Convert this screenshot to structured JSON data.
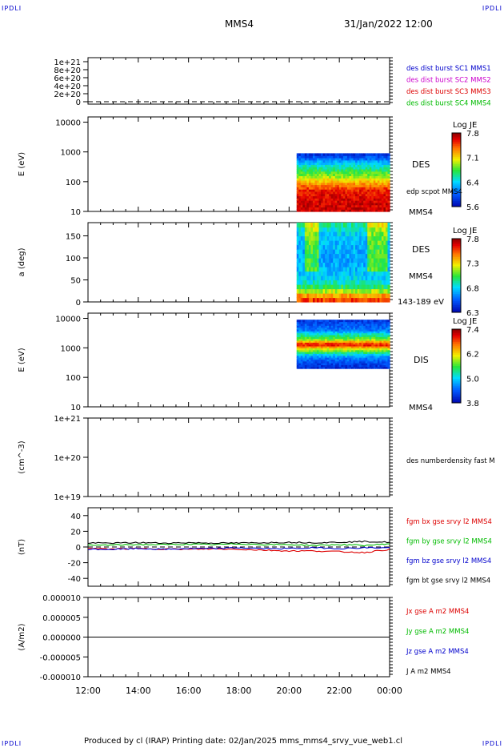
{
  "corner_tl": "IPDLI",
  "corner_tr": "IPDLI",
  "corner_bl": "IPDLI",
  "corner_br": "IPDLI",
  "title": "MMS4",
  "date": "31/Jan/2022 12:00",
  "footer": "Produced by cl (IRAP)   Printing date: 02/Jan/2025   mms_mms4_srvy_vue_web1.cl",
  "colors": {
    "mms1": "#0000cc",
    "mms2": "#cc00cc",
    "mms3": "#dd0000",
    "mms4": "#00bb00",
    "bx": "#dd0000",
    "by": "#00bb00",
    "bz": "#0000cc",
    "bt": "#000000",
    "jx": "#dd0000",
    "jy": "#00bb00",
    "jz": "#0000cc",
    "j": "#000000"
  },
  "chart_data": [
    {
      "type": "line",
      "id": "burst",
      "yticks": [
        "1e+21",
        "8e+20",
        "6e+20",
        "4e+20",
        "2e+20",
        "0"
      ],
      "ylim": [
        0,
        1.1e+21
      ],
      "series": [
        {
          "name": "des dist burst SC1 MMS1",
          "color": "#0000cc"
        },
        {
          "name": "des dist burst SC2 MMS2",
          "color": "#cc00cc"
        },
        {
          "name": "des dist burst SC3 MMS3",
          "color": "#dd0000"
        },
        {
          "name": "des dist burst SC4 MMS4",
          "color": "#00bb00"
        }
      ],
      "zero_line": true
    },
    {
      "type": "heatmap",
      "id": "des_energy",
      "ylabel": "E (eV)",
      "scale": "log",
      "yticks": [
        "10000",
        "1000",
        "100",
        "10"
      ],
      "ylim": [
        10,
        15000
      ],
      "label": "DES",
      "sublabel": "edp scpot MMS4",
      "bottom_label": "MMS4",
      "cbar_title": "Log JE",
      "cbar_ticks": [
        "7.8",
        "7.1",
        "6.4",
        "5.6"
      ],
      "coverage": {
        "start_h": 20.3,
        "end_h": 24.0,
        "emin": 10,
        "emax": 900
      },
      "profile": [
        {
          "e": 10,
          "level": 0.95
        },
        {
          "e": 50,
          "level": 0.9
        },
        {
          "e": 80,
          "level": 0.78
        },
        {
          "e": 150,
          "level": 0.58
        },
        {
          "e": 300,
          "level": 0.42
        },
        {
          "e": 600,
          "level": 0.2
        },
        {
          "e": 900,
          "level": 0.08
        }
      ]
    },
    {
      "type": "heatmap",
      "id": "des_pitch",
      "ylabel": "a (deg)",
      "yticks": [
        "150",
        "100",
        "50",
        "0"
      ],
      "ylim": [
        0,
        180
      ],
      "label": "DES",
      "sublabel": "MMS4",
      "bottom_label": "143-189 eV",
      "cbar_title": "Log JE",
      "cbar_ticks": [
        "7.8",
        "7.3",
        "6.8",
        "6.3"
      ],
      "coverage": {
        "start_h": 20.3,
        "end_h": 24.0
      },
      "profile": [
        {
          "a": 0,
          "level": 0.92
        },
        {
          "a": 15,
          "level": 0.75
        },
        {
          "a": 30,
          "level": 0.52
        },
        {
          "a": 50,
          "level": 0.35
        },
        {
          "a": 90,
          "level": 0.28
        },
        {
          "a": 150,
          "level": 0.32
        },
        {
          "a": 180,
          "level": 0.45
        }
      ],
      "hot_intervals": [
        {
          "start_h": 20.6,
          "end_h": 21.2
        },
        {
          "start_h": 23.1,
          "end_h": 23.9
        }
      ]
    },
    {
      "type": "heatmap",
      "id": "dis_energy",
      "ylabel": "E (eV)",
      "scale": "log",
      "yticks": [
        "10000",
        "1000",
        "100",
        "10"
      ],
      "ylim": [
        10,
        15000
      ],
      "label": "DIS",
      "bottom_label": "MMS4",
      "cbar_title": "Log JE",
      "cbar_ticks": [
        "7.4",
        "6.2",
        "5.0",
        "3.8"
      ],
      "coverage": {
        "start_h": 20.3,
        "end_h": 24.0,
        "emin": 200,
        "emax": 9000
      },
      "profile": [
        {
          "e": 200,
          "level": 0.08
        },
        {
          "e": 500,
          "level": 0.25
        },
        {
          "e": 800,
          "level": 0.55
        },
        {
          "e": 1300,
          "level": 0.92
        },
        {
          "e": 2000,
          "level": 0.55
        },
        {
          "e": 4000,
          "level": 0.22
        },
        {
          "e": 9000,
          "level": 0.1
        }
      ]
    },
    {
      "type": "line",
      "id": "density",
      "ylabel": "(cm^-3)",
      "scale": "log",
      "yticks": [
        "1e+21",
        "1e+20",
        "1e+19"
      ],
      "ylim": [
        1e+19,
        1e+21
      ],
      "series": [
        {
          "name": "des numberdensity fast M",
          "color": "#000000"
        }
      ]
    },
    {
      "type": "line",
      "id": "bfield",
      "ylabel": "(nT)",
      "yticks": [
        "40",
        "20",
        "0",
        "-20",
        "-40"
      ],
      "ylim": [
        -50,
        50
      ],
      "series": [
        {
          "name": "fgm bx gse srvy l2 MMS4",
          "color": "#dd0000",
          "x": [
            12,
            13,
            14,
            15,
            16,
            17,
            18,
            19,
            20,
            21,
            22,
            23,
            24
          ],
          "values": [
            -2,
            -2.5,
            -2,
            -2.5,
            -3,
            -2.5,
            -3,
            -4,
            -5,
            -5,
            -6,
            -7,
            -3
          ]
        },
        {
          "name": "fgm by gse srvy l2 MMS4",
          "color": "#00bb00",
          "x": [
            12,
            13,
            14,
            15,
            16,
            17,
            18,
            19,
            20,
            21,
            22,
            23,
            24
          ],
          "values": [
            2,
            2.5,
            3,
            3,
            3.5,
            3,
            4,
            3,
            3,
            2,
            3,
            2,
            4
          ]
        },
        {
          "name": "fgm bz gse srvy l2 MMS4",
          "color": "#0000cc",
          "x": [
            12,
            13,
            14,
            15,
            16,
            17,
            18,
            19,
            20,
            21,
            22,
            23,
            24
          ],
          "values": [
            -3,
            -3,
            -2,
            -3,
            -2,
            -2,
            -1,
            -2,
            -2,
            -1,
            -2,
            -1,
            -1
          ]
        },
        {
          "name": "fgm bt gse srvy l2 MMS4",
          "color": "#000000",
          "x": [
            12,
            13,
            14,
            15,
            16,
            17,
            18,
            19,
            20,
            21,
            22,
            23,
            24
          ],
          "values": [
            5,
            5,
            5.5,
            5,
            5.5,
            5,
            5,
            5.5,
            6,
            5.5,
            6,
            7,
            6
          ]
        }
      ]
    },
    {
      "type": "line",
      "id": "current",
      "ylabel": "(A/m2)",
      "yticks": [
        "0.000010",
        "0.000005",
        "0.000000",
        "-0.000005",
        "-0.000010"
      ],
      "ylim": [
        -1e-05,
        1e-05
      ],
      "series": [
        {
          "name": "Jx gse A m2 MMS4",
          "color": "#dd0000"
        },
        {
          "name": "Jy gse A m2 MMS4",
          "color": "#00bb00"
        },
        {
          "name": "Jz gse A m2 MMS4",
          "color": "#0000cc"
        },
        {
          "name": "J A m2 MMS4",
          "color": "#000000"
        }
      ]
    }
  ],
  "xaxis": {
    "ticks": [
      "12:00",
      "14:00",
      "16:00",
      "18:00",
      "20:00",
      "22:00",
      "00:00"
    ],
    "hours": [
      12,
      14,
      16,
      18,
      20,
      22,
      24
    ]
  }
}
